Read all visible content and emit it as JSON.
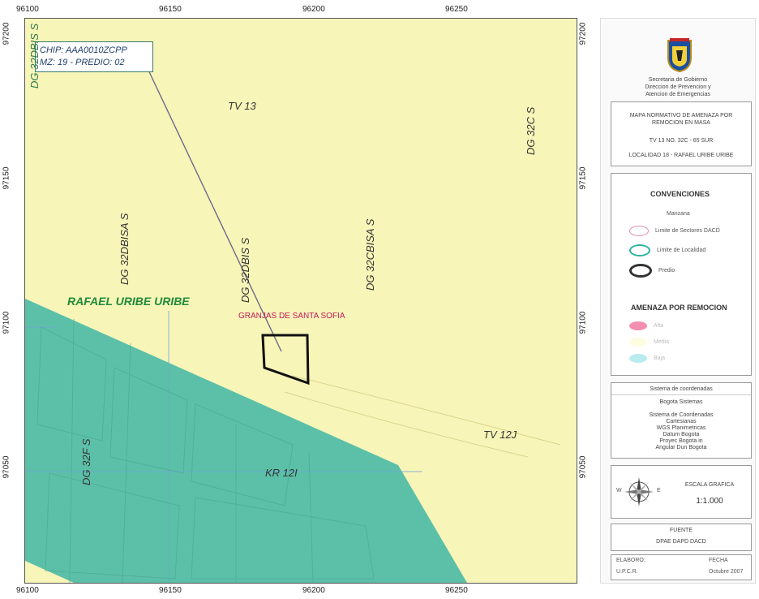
{
  "map": {
    "x_ticks": [
      "96100",
      "96150",
      "96200",
      "96250"
    ],
    "y_ticks": [
      "97200",
      "97150",
      "97100",
      "97050"
    ],
    "callout": {
      "line1": "CHIP: AAA0010ZCPP",
      "line2": "MZ:  19 - PREDIO: 02"
    },
    "streets": {
      "dg32dbis_top": "DG 32DBIS S",
      "tv13": "TV 13",
      "dg32cs": "DG 32C S",
      "dg32dbisa": "DG 32DBISA S",
      "dg32dbis": "DG 32DBIS S",
      "dg32cbisa": "DG 32CBISA S",
      "tv12j": "TV 12J",
      "kr12i": "KR 12I",
      "dg32f": "DG 32F S"
    },
    "locality_label": "RAFAEL URIBE URIBE",
    "barrio_label": "GRANJAS DE SANTA SOFIA",
    "colors": {
      "background": "#f8f5b8",
      "hazard_zone": "#5cc0a8",
      "grid": "#6aa8d8",
      "parcel": "#111111"
    }
  },
  "legend": {
    "org": {
      "line1": "Secretaria de Gobierno",
      "line2": "Direccion de Prevencion y",
      "line3": "Atencion de Emergencias"
    },
    "title_box": {
      "title": "MAPA NORMATIVO DE AMENAZA POR REMOCION EN MASA",
      "address": "TV 13 NO. 32C - 65 SUR",
      "locality": "LOCALIDAD 18 - RAFAEL URIBE URIBE"
    },
    "conventions": {
      "heading": "CONVENCIONES",
      "manzana": "Manzana",
      "limite_sectores": "Limite de Sectores DACD",
      "limite_localidad": "Limite de Localidad",
      "predio": "Predio"
    },
    "hazard": {
      "heading": "AMENAZA POR REMOCION",
      "alta": "Alta",
      "media": "Media",
      "baja": "Baja"
    },
    "coords": {
      "heading": "Sistema de coordenadas",
      "l1": "Bogota Sistemas",
      "l2": "Sistema de Coordenadas",
      "l3": "Cartesianas",
      "l4": "WGS Planimetricas",
      "l5": "Datum Bogota",
      "l6": "Proyec Bogota in",
      "l7": "Angular Dun Bogota"
    },
    "scale": {
      "heading": "ESCALA GRAFICA",
      "value": "1:1.000",
      "compass_w": "W",
      "compass_e": "E"
    },
    "source": {
      "heading": "FUENTE",
      "value": "DPAE  DAPD  DACD"
    },
    "footer": {
      "elaboro": "ELABORO:",
      "elaboro_val": "U.P.C.R.",
      "fecha": "FECHA",
      "fecha_val": "Octubre  2007"
    }
  }
}
